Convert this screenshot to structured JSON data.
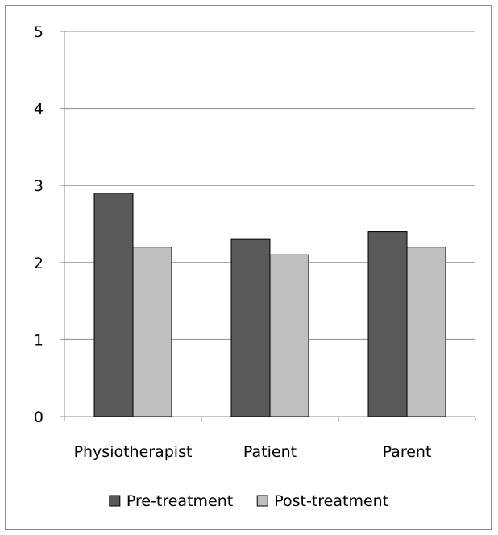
{
  "chart_data": {
    "type": "bar",
    "title": "",
    "xlabel": "",
    "ylabel": "",
    "categories": [
      "Physiotherapist",
      "Patient",
      "Parent"
    ],
    "series": [
      {
        "name": "Pre-treatment",
        "values": [
          2.9,
          2.3,
          2.4
        ],
        "color": "#595959"
      },
      {
        "name": "Post-treatment",
        "values": [
          2.2,
          2.1,
          2.2
        ],
        "color": "#bfbfbf"
      }
    ],
    "ylim": [
      0,
      5
    ],
    "yticks": [
      "0",
      "1",
      "2",
      "3",
      "4",
      "5"
    ],
    "grid": true,
    "legend_position": "bottom"
  }
}
